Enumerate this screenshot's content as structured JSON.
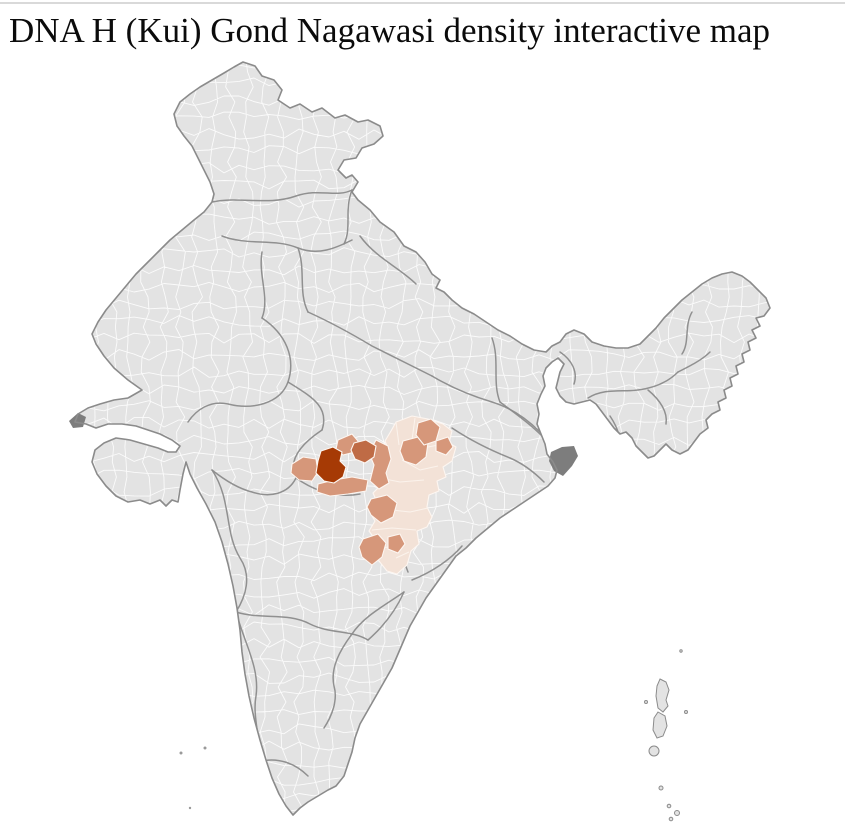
{
  "header": {
    "title": "DNA H (Kui) Gond Nagawasi density interactive map"
  },
  "page": {
    "background_color": "#ffffff",
    "top_rule_color": "#d9d9d9",
    "title_color": "#0b0b0b"
  },
  "map": {
    "name": "india-district-choropleth",
    "sea_color": "#ffffff",
    "base_fill": "#e3e3e3",
    "district_line_color": "#fcfcfc",
    "state_line_color": "#8b8b8b",
    "outline_color": "#8b8b8b",
    "delta_patch_color": "#7d7d7d",
    "island_dot_color": "#9a9a9a",
    "density_scale": {
      "levels": [
        {
          "name": "very-high",
          "color": "#a63a05"
        },
        {
          "name": "high",
          "color": "#bf6b45"
        },
        {
          "name": "medium",
          "color": "#d6977a"
        },
        {
          "name": "low",
          "color": "#f3e2d7"
        },
        {
          "name": "none",
          "color": "#e3e3e3"
        }
      ]
    },
    "highlighted_cluster": {
      "location": "central India (Madhya Pradesh / Chhattisgarh belt)",
      "regions": [
        {
          "id": "core-district",
          "level": "very-high",
          "count": 1
        },
        {
          "id": "adjacent-district",
          "level": "high",
          "count": 1
        },
        {
          "id": "surrounding-belt",
          "level": "medium",
          "count": 10
        },
        {
          "id": "chhattisgarh-block",
          "level": "low",
          "count": 1
        }
      ]
    },
    "other_features": [
      "sundarbans-delta-patch",
      "kutch-creek-patch",
      "andaman-nicobar-islands",
      "lakshadweep-islands"
    ]
  }
}
